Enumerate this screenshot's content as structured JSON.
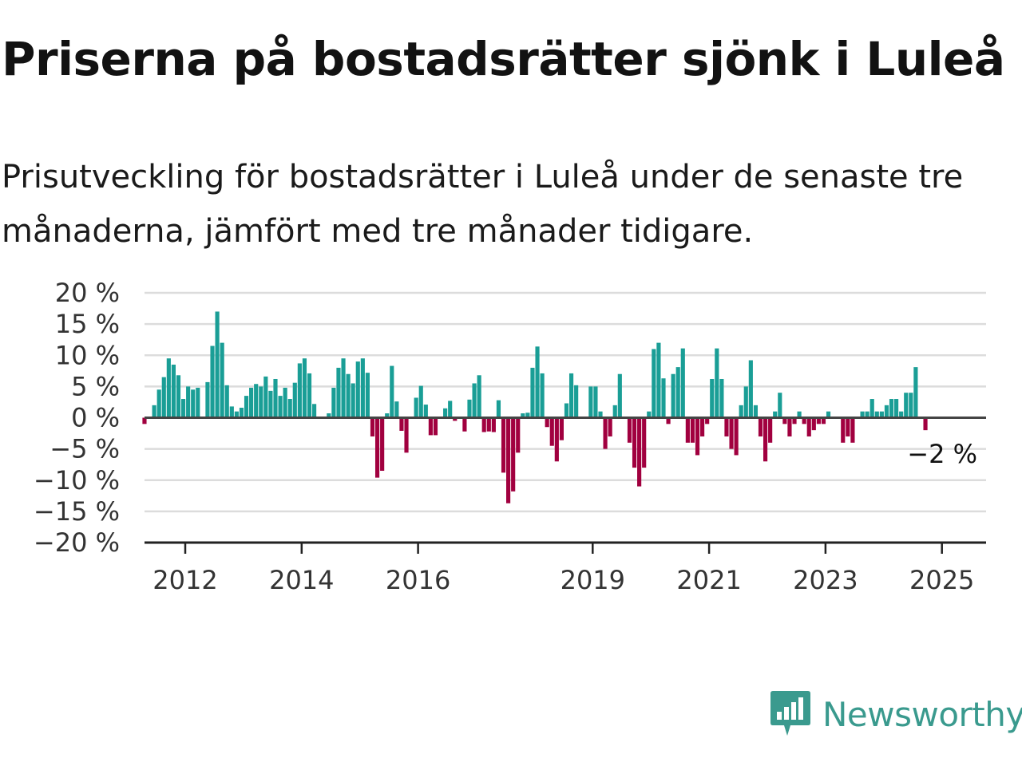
{
  "header": {
    "title": "Priserna på bostadsrätter sjönk i Luleå",
    "subtitle": "Prisutveckling för bostadsrätter i Luleå under de senaste tre månaderna, jämfört med tre månader tidigare."
  },
  "brand": {
    "name": "Newsworthy",
    "color": "#3a9a8e",
    "icon": "bar-chart-speech-bubble-icon"
  },
  "colors": {
    "positive": "#1a9e96",
    "negative": "#a1003f",
    "gridline": "#dcdcdc",
    "zeroline": "#444444"
  },
  "chart_data": {
    "type": "bar",
    "title": "",
    "xlabel": "",
    "ylabel": "",
    "ylim": [
      -20,
      20
    ],
    "y_ticks": [
      20,
      15,
      10,
      5,
      0,
      -5,
      -10,
      -15,
      -20
    ],
    "y_tick_labels": [
      "20 %",
      "15 %",
      "10 %",
      "5 %",
      "0 %",
      "−5 %",
      "−10 %",
      "−15 %",
      "−20 %"
    ],
    "x_ticks": [
      "2012",
      "2014",
      "2016",
      "2019",
      "2021",
      "2023",
      "2025"
    ],
    "x_start_year": 2011.3,
    "last_value_label": "−2 %",
    "grid": true,
    "values": [
      -1,
      0,
      2,
      4.5,
      6.5,
      9.5,
      8.5,
      6.8,
      3,
      5,
      4.5,
      4.8,
      0,
      5.7,
      11.5,
      17,
      12,
      5.2,
      1.8,
      1,
      1.6,
      3.5,
      4.8,
      5.4,
      5,
      6.6,
      4.3,
      6.2,
      3.5,
      4.8,
      3,
      5.6,
      8.7,
      9.5,
      7.1,
      2.2,
      0,
      0,
      0.7,
      4.8,
      8,
      9.5,
      7,
      5.5,
      9,
      9.5,
      7.2,
      -3,
      -9.6,
      -8.5,
      0.7,
      8.3,
      2.6,
      -2.1,
      -5.6,
      0,
      3.2,
      5.1,
      2.1,
      -2.8,
      -2.8,
      0,
      1.5,
      2.7,
      -0.5,
      0,
      -2.2,
      2.9,
      5.5,
      6.8,
      -2.3,
      -2.2,
      -2.3,
      2.8,
      -8.8,
      -13.7,
      -11.8,
      -5.6,
      0.7,
      0.8,
      8,
      11.4,
      7.1,
      -1.5,
      -4.5,
      -7,
      -3.6,
      2.3,
      7.1,
      5.2,
      0,
      0,
      5,
      5,
      1,
      -5,
      -3,
      2,
      7,
      0,
      -4,
      -8,
      -11,
      -8,
      1,
      11,
      12,
      6.3,
      -1,
      7,
      8.1,
      11.1,
      -4,
      -4,
      -6,
      -3,
      -1,
      6.2,
      11.1,
      6.2,
      -3,
      -5,
      -6,
      2,
      5,
      9.2,
      2,
      -3,
      -7,
      -4,
      1,
      4,
      -1,
      -3,
      -1,
      1,
      -1,
      -3,
      -2,
      -1,
      -1,
      1,
      0,
      0,
      -4,
      -3,
      -4,
      0,
      1,
      1,
      3,
      1,
      1,
      2,
      3,
      3,
      1,
      4,
      4,
      8.1,
      0,
      -2
    ]
  }
}
